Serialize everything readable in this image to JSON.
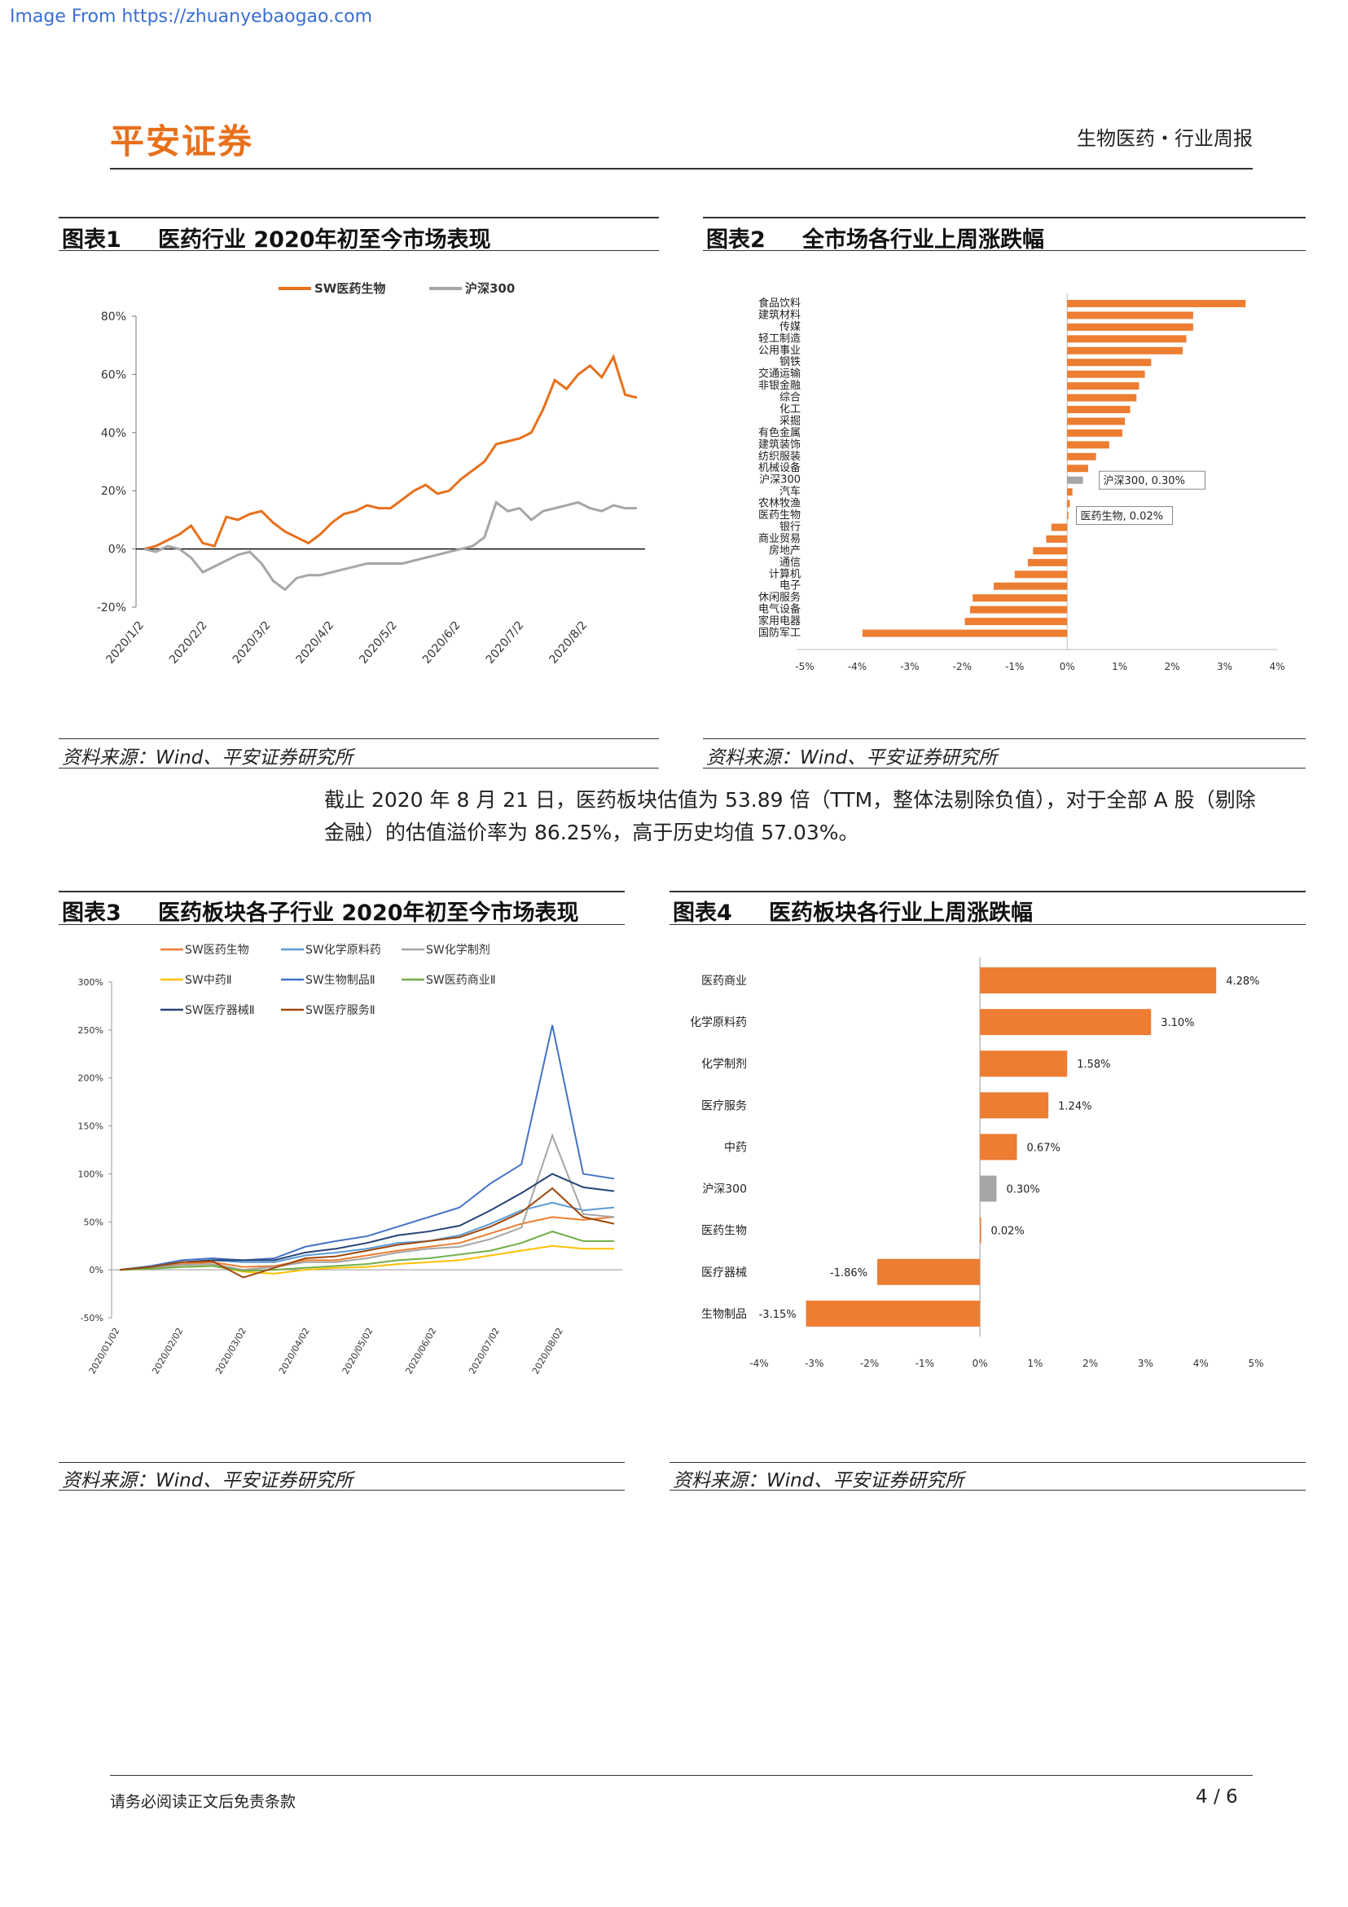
{
  "watermark": "Image From https://zhuanyebaogao.com",
  "header": {
    "logo": "平安证券",
    "right": "生物医药・行业周报"
  },
  "fig1": {
    "label": "图表1",
    "title": "医药行业 2020年初至今市场表现",
    "source": "资料来源：Wind、平安证券研究所"
  },
  "fig2": {
    "label": "图表2",
    "title": "全市场各行业上周涨跌幅",
    "source": "资料来源：Wind、平安证券研究所"
  },
  "fig3": {
    "label": "图表3",
    "title": "医药板块各子行业 2020年初至今市场表现",
    "source": "资料来源：Wind、平安证券研究所"
  },
  "fig4": {
    "label": "图表4",
    "title": "医药板块各行业上周涨跌幅",
    "source": "资料来源：Wind、平安证券研究所"
  },
  "paragraph": "截止 2020 年 8 月 21 日，医药板块估值为 53.89 倍（TTM，整体法剔除负值），对于全部 A 股（剔除金融）的估值溢价率为 86.25%，高于历史均值 57.03%。",
  "footer": {
    "left": "请务必阅读正文后免责条款",
    "right": "4 / 6"
  },
  "chart_data": [
    {
      "type": "line",
      "ylim": [
        -20,
        80
      ],
      "yticks": [
        "80%",
        "60%",
        "40%",
        "20%",
        "0%",
        "-20%"
      ],
      "xticks": [
        "2020/1/2",
        "2020/2/2",
        "2020/3/2",
        "2020/4/2",
        "2020/5/2",
        "2020/6/2",
        "2020/7/2",
        "2020/8/2"
      ],
      "colors": {
        "SW医药生物": "#e8701c",
        "沪深300": "#a6a6a6"
      },
      "series": [
        {
          "name": "SW医药生物",
          "values": [
            0,
            1,
            3,
            5,
            8,
            2,
            1,
            11,
            10,
            12,
            13,
            9,
            6,
            4,
            2,
            5,
            9,
            12,
            13,
            15,
            14,
            14,
            17,
            20,
            22,
            19,
            20,
            24,
            27,
            30,
            36,
            37,
            38,
            40,
            48,
            58,
            55,
            60,
            63,
            59,
            66,
            53,
            52
          ]
        },
        {
          "name": "沪深300",
          "values": [
            0,
            -1,
            1,
            0,
            -3,
            -8,
            -6,
            -4,
            -2,
            -1,
            -5,
            -11,
            -14,
            -10,
            -9,
            -9,
            -8,
            -7,
            -6,
            -5,
            -5,
            -5,
            -5,
            -4,
            -3,
            -2,
            -1,
            0,
            1,
            4,
            16,
            13,
            14,
            10,
            13,
            14,
            15,
            16,
            14,
            13,
            15,
            14,
            14
          ]
        }
      ]
    },
    {
      "type": "bar",
      "orientation": "horizontal",
      "xticks": [
        "-5%",
        "-4%",
        "-3%",
        "-2%",
        "-1%",
        "0%",
        "1%",
        "2%",
        "3%",
        "4%"
      ],
      "xlim": [
        -5,
        4
      ],
      "categories": [
        "食品饮料",
        "建筑材料",
        "传媒",
        "轻工制造",
        "公用事业",
        "钢铁",
        "交通运输",
        "非银金融",
        "综合",
        "化工",
        "采掘",
        "有色金属",
        "建筑装饰",
        "纺织服装",
        "机械设备",
        "沪深300",
        "汽车",
        "农林牧渔",
        "医药生物",
        "银行",
        "商业贸易",
        "房地产",
        "通信",
        "计算机",
        "电子",
        "休闲服务",
        "电气设备",
        "家用电器",
        "国防军工"
      ],
      "values": [
        3.4,
        2.4,
        2.4,
        2.27,
        2.2,
        1.6,
        1.48,
        1.37,
        1.32,
        1.2,
        1.1,
        1.05,
        0.8,
        0.55,
        0.4,
        0.3,
        0.1,
        0.05,
        0.02,
        -0.3,
        -0.4,
        -0.65,
        -0.75,
        -1.0,
        -1.4,
        -1.8,
        -1.85,
        -1.95,
        -3.9
      ],
      "highlight": {
        "沪深300": "#a6a6a6"
      },
      "annotations": [
        "沪深300, 0.30%",
        "医药生物, 0.02%"
      ]
    },
    {
      "type": "line",
      "ylim": [
        -50,
        300
      ],
      "yticks": [
        "300%",
        "250%",
        "200%",
        "150%",
        "100%",
        "50%",
        "0%",
        "-50%"
      ],
      "xticks": [
        "2020/01/02",
        "2020/02/02",
        "2020/03/02",
        "2020/04/02",
        "2020/05/02",
        "2020/06/02",
        "2020/07/02",
        "2020/08/02"
      ],
      "series": [
        {
          "name": "SW医药生物",
          "color": "#ed7d31",
          "values": [
            0,
            2,
            6,
            8,
            3,
            4,
            10,
            10,
            15,
            20,
            24,
            28,
            38,
            48,
            55,
            52,
            55
          ]
        },
        {
          "name": "SW化学原料药",
          "color": "#5b9bd5",
          "values": [
            0,
            3,
            8,
            10,
            8,
            8,
            15,
            18,
            22,
            28,
            30,
            36,
            48,
            62,
            70,
            62,
            65
          ]
        },
        {
          "name": "SW化学制剂",
          "color": "#a5a5a5",
          "values": [
            0,
            2,
            5,
            6,
            0,
            3,
            8,
            8,
            12,
            18,
            22,
            24,
            32,
            44,
            140,
            58,
            55
          ]
        },
        {
          "name": "SW中药Ⅱ",
          "color": "#ffc000",
          "values": [
            0,
            1,
            3,
            4,
            -2,
            -4,
            0,
            2,
            3,
            6,
            8,
            10,
            15,
            20,
            25,
            22,
            22
          ]
        },
        {
          "name": "SW生物制品Ⅱ",
          "color": "#4472c4",
          "values": [
            0,
            4,
            10,
            12,
            10,
            12,
            24,
            30,
            35,
            45,
            55,
            65,
            90,
            110,
            255,
            100,
            95
          ]
        },
        {
          "name": "SW医药商业Ⅱ",
          "color": "#70ad47",
          "values": [
            0,
            1,
            3,
            4,
            -1,
            0,
            2,
            4,
            6,
            10,
            12,
            16,
            20,
            28,
            40,
            30,
            30
          ]
        },
        {
          "name": "SW医疗器械Ⅱ",
          "color": "#264478",
          "values": [
            0,
            3,
            8,
            10,
            10,
            10,
            18,
            22,
            28,
            36,
            40,
            46,
            62,
            80,
            100,
            86,
            82
          ]
        },
        {
          "name": "SW医疗服务Ⅱ",
          "color": "#9e480e",
          "values": [
            0,
            3,
            8,
            9,
            -8,
            2,
            12,
            14,
            20,
            26,
            30,
            34,
            45,
            60,
            85,
            55,
            48
          ]
        }
      ]
    },
    {
      "type": "bar",
      "orientation": "horizontal",
      "xlim": [
        -4,
        5
      ],
      "xticks": [
        "-4%",
        "-3%",
        "-2%",
        "-1%",
        "0%",
        "1%",
        "2%",
        "3%",
        "4%",
        "5%"
      ],
      "categories": [
        "医药商业",
        "化学原料药",
        "化学制剂",
        "医疗服务",
        "中药",
        "沪深300",
        "医药生物",
        "医疗器械",
        "生物制品"
      ],
      "values": [
        4.28,
        3.1,
        1.58,
        1.24,
        0.67,
        0.3,
        0.02,
        -1.86,
        -3.15
      ],
      "labels": [
        "4.28%",
        "3.10%",
        "1.58%",
        "1.24%",
        "0.67%",
        "0.30%",
        "0.02%",
        "-1.86%",
        "-3.15%"
      ],
      "highlight": {
        "沪深300": "#a6a6a6"
      }
    }
  ]
}
